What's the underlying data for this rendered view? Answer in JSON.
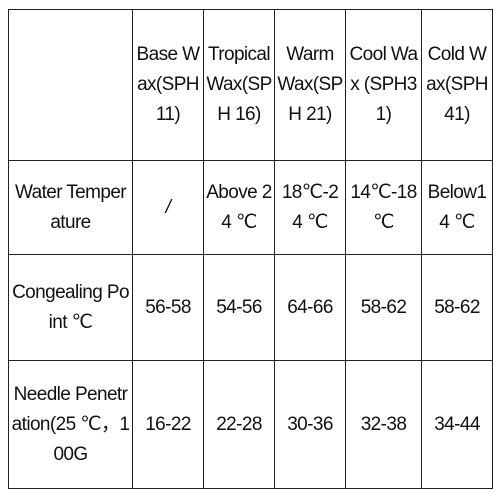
{
  "header": {
    "corner": "",
    "columns": [
      "Base Wax(SPH 11)",
      "Tropical Wax(SPH 16)",
      "Warm Wax(SPH 21)",
      "Cool Wax (SPH31)",
      "Cold Wax(SPH 41)"
    ]
  },
  "rows": [
    {
      "label": "Water Temperature",
      "values": [
        "/",
        "Above 24 ℃",
        "18℃-24 ℃",
        "14℃-18 ℃",
        "Below14 ℃"
      ]
    },
    {
      "label": "Congealing Point ℃",
      "values": [
        "56-58",
        "54-56",
        "64-66",
        "58-62",
        "58-62"
      ]
    },
    {
      "label": "Needle Penetration(25 ℃，100G",
      "values": [
        "16-22",
        "22-28",
        "30-36",
        "32-38",
        "34-44"
      ]
    }
  ]
}
